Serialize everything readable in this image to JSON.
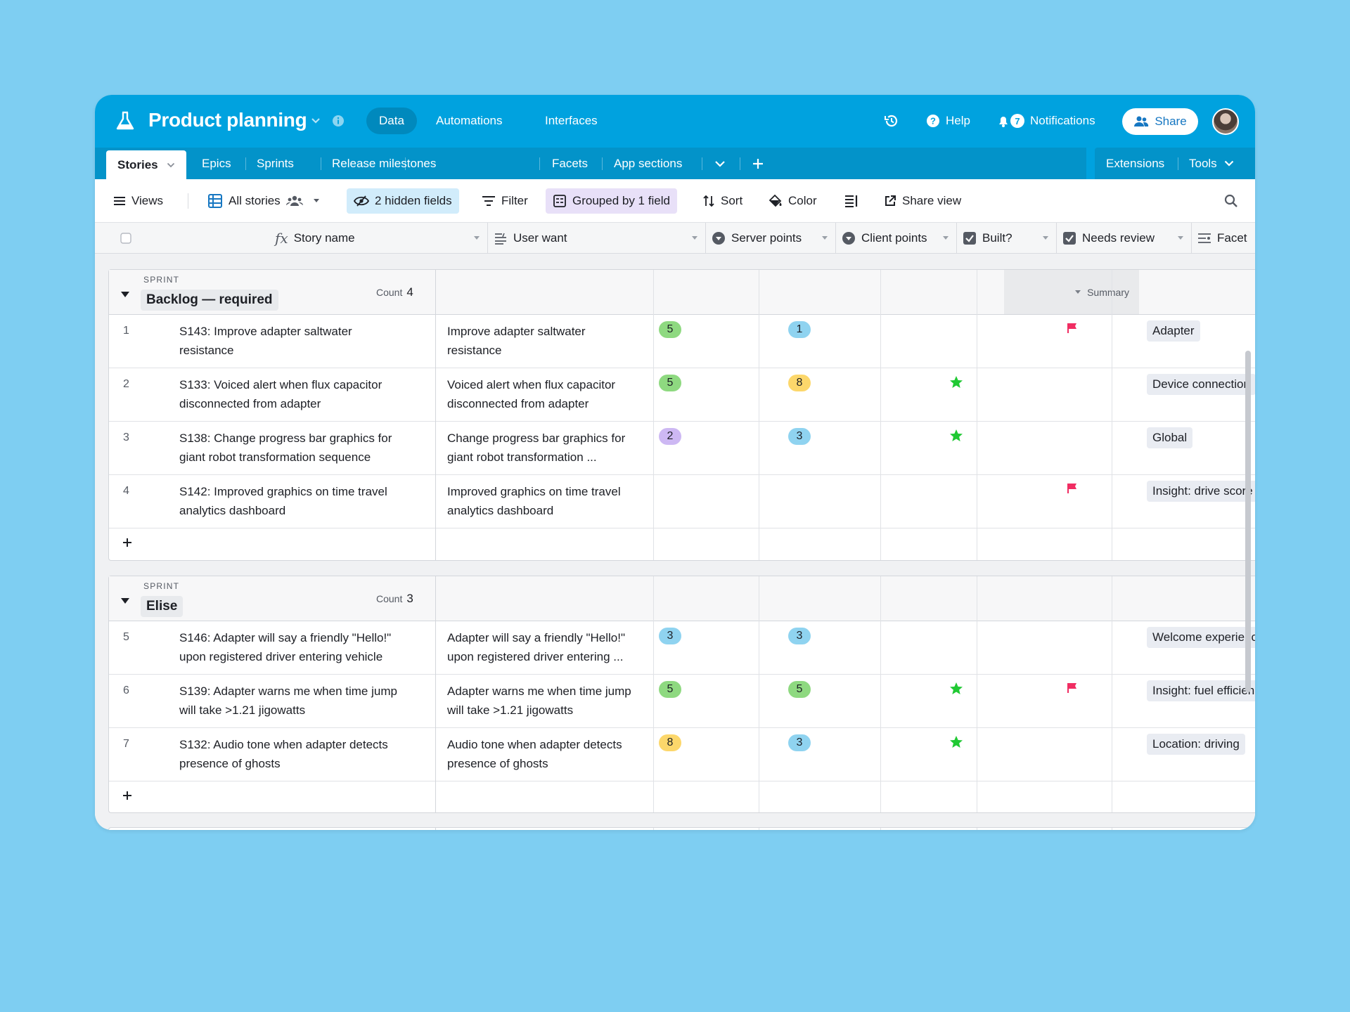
{
  "header": {
    "base_title": "Product planning",
    "nav": [
      "Data",
      "Automations",
      "Interfaces"
    ],
    "help_label": "Help",
    "notifications_label": "Notifications",
    "notifications_count": "7",
    "share_label": "Share"
  },
  "tabs": {
    "active": "Stories",
    "items": [
      "Epics",
      "Sprints",
      "Release milestones",
      "Facets",
      "App sections"
    ],
    "extensions_label": "Extensions",
    "tools_label": "Tools"
  },
  "toolbar": {
    "views_label": "Views",
    "view_name": "All stories",
    "hidden_fields": "2 hidden fields",
    "filter": "Filter",
    "grouped": "Grouped by 1 field",
    "sort": "Sort",
    "color": "Color",
    "share_view": "Share view"
  },
  "columns": {
    "story_name": "Story name",
    "user_want": "User want",
    "server_points": "Server points",
    "client_points": "Client points",
    "built": "Built?",
    "needs_review": "Needs review",
    "facet": "Facet"
  },
  "summary_label": "Summary",
  "colors": {
    "header": "#00a2df",
    "badge_green": "#8ed980",
    "badge_blue": "#8fd3f0",
    "badge_purple": "#cdb8f3",
    "badge_yellow": "#fcd76b",
    "star": "#20c933",
    "flag": "#f02d62"
  },
  "groups": [
    {
      "label": "SPRINT",
      "name": "Backlog — required",
      "count_label": "Count",
      "count": "4",
      "rows": [
        {
          "n": "1",
          "story_1": "S143: Improve adapter saltwater",
          "story_2": "resistance",
          "want_1": "Improve adapter saltwater",
          "want_2": "resistance",
          "server": "5",
          "server_color": "green",
          "client": "1",
          "client_color": "blue",
          "built": false,
          "review": true,
          "facet": "Adapter"
        },
        {
          "n": "2",
          "story_1": "S133: Voiced alert when flux capacitor",
          "story_2": "disconnected from adapter",
          "want_1": "Voiced alert when flux capacitor",
          "want_2": "disconnected from adapter",
          "server": "5",
          "server_color": "green",
          "client": "8",
          "client_color": "yellow",
          "built": true,
          "review": false,
          "facet": "Device connection"
        },
        {
          "n": "3",
          "story_1": "S138: Change progress bar graphics for",
          "story_2": "giant robot transformation sequence",
          "want_1": "Change progress bar graphics for",
          "want_2": "giant robot transformation ...",
          "server": "2",
          "server_color": "purple",
          "client": "3",
          "client_color": "blue",
          "built": true,
          "review": false,
          "facet": "Global"
        },
        {
          "n": "4",
          "story_1": "S142: Improved graphics on time travel",
          "story_2": "analytics dashboard",
          "want_1": "Improved graphics on time travel",
          "want_2": "analytics dashboard",
          "server": "",
          "server_color": "",
          "client": "",
          "client_color": "",
          "built": false,
          "review": true,
          "facet": "Insight: drive score"
        }
      ]
    },
    {
      "label": "SPRINT",
      "name": "Elise",
      "count_label": "Count",
      "count": "3",
      "rows": [
        {
          "n": "5",
          "story_1": "S146: Adapter will say a friendly \"Hello!\"",
          "story_2": "upon registered driver entering vehicle",
          "want_1": "Adapter will say a friendly \"Hello!\"",
          "want_2": "upon registered driver entering ...",
          "server": "3",
          "server_color": "blue",
          "client": "3",
          "client_color": "blue",
          "built": false,
          "review": false,
          "facet": "Welcome experience"
        },
        {
          "n": "6",
          "story_1": "S139: Adapter warns me when time jump",
          "story_2": "will take >1.21 jigowatts",
          "want_1": "Adapter warns me when time jump",
          "want_2": "will take >1.21 jigowatts",
          "server": "5",
          "server_color": "green",
          "client": "5",
          "client_color": "green",
          "built": true,
          "review": true,
          "facet": "Insight: fuel efficiency"
        },
        {
          "n": "7",
          "story_1": "S132: Audio tone when adapter detects",
          "story_2": "presence of ghosts",
          "want_1": "Audio tone when adapter detects",
          "want_2": "presence of ghosts",
          "server": "8",
          "server_color": "yellow",
          "client": "3",
          "client_color": "blue",
          "built": true,
          "review": false,
          "facet": "Location: driving"
        }
      ]
    }
  ]
}
